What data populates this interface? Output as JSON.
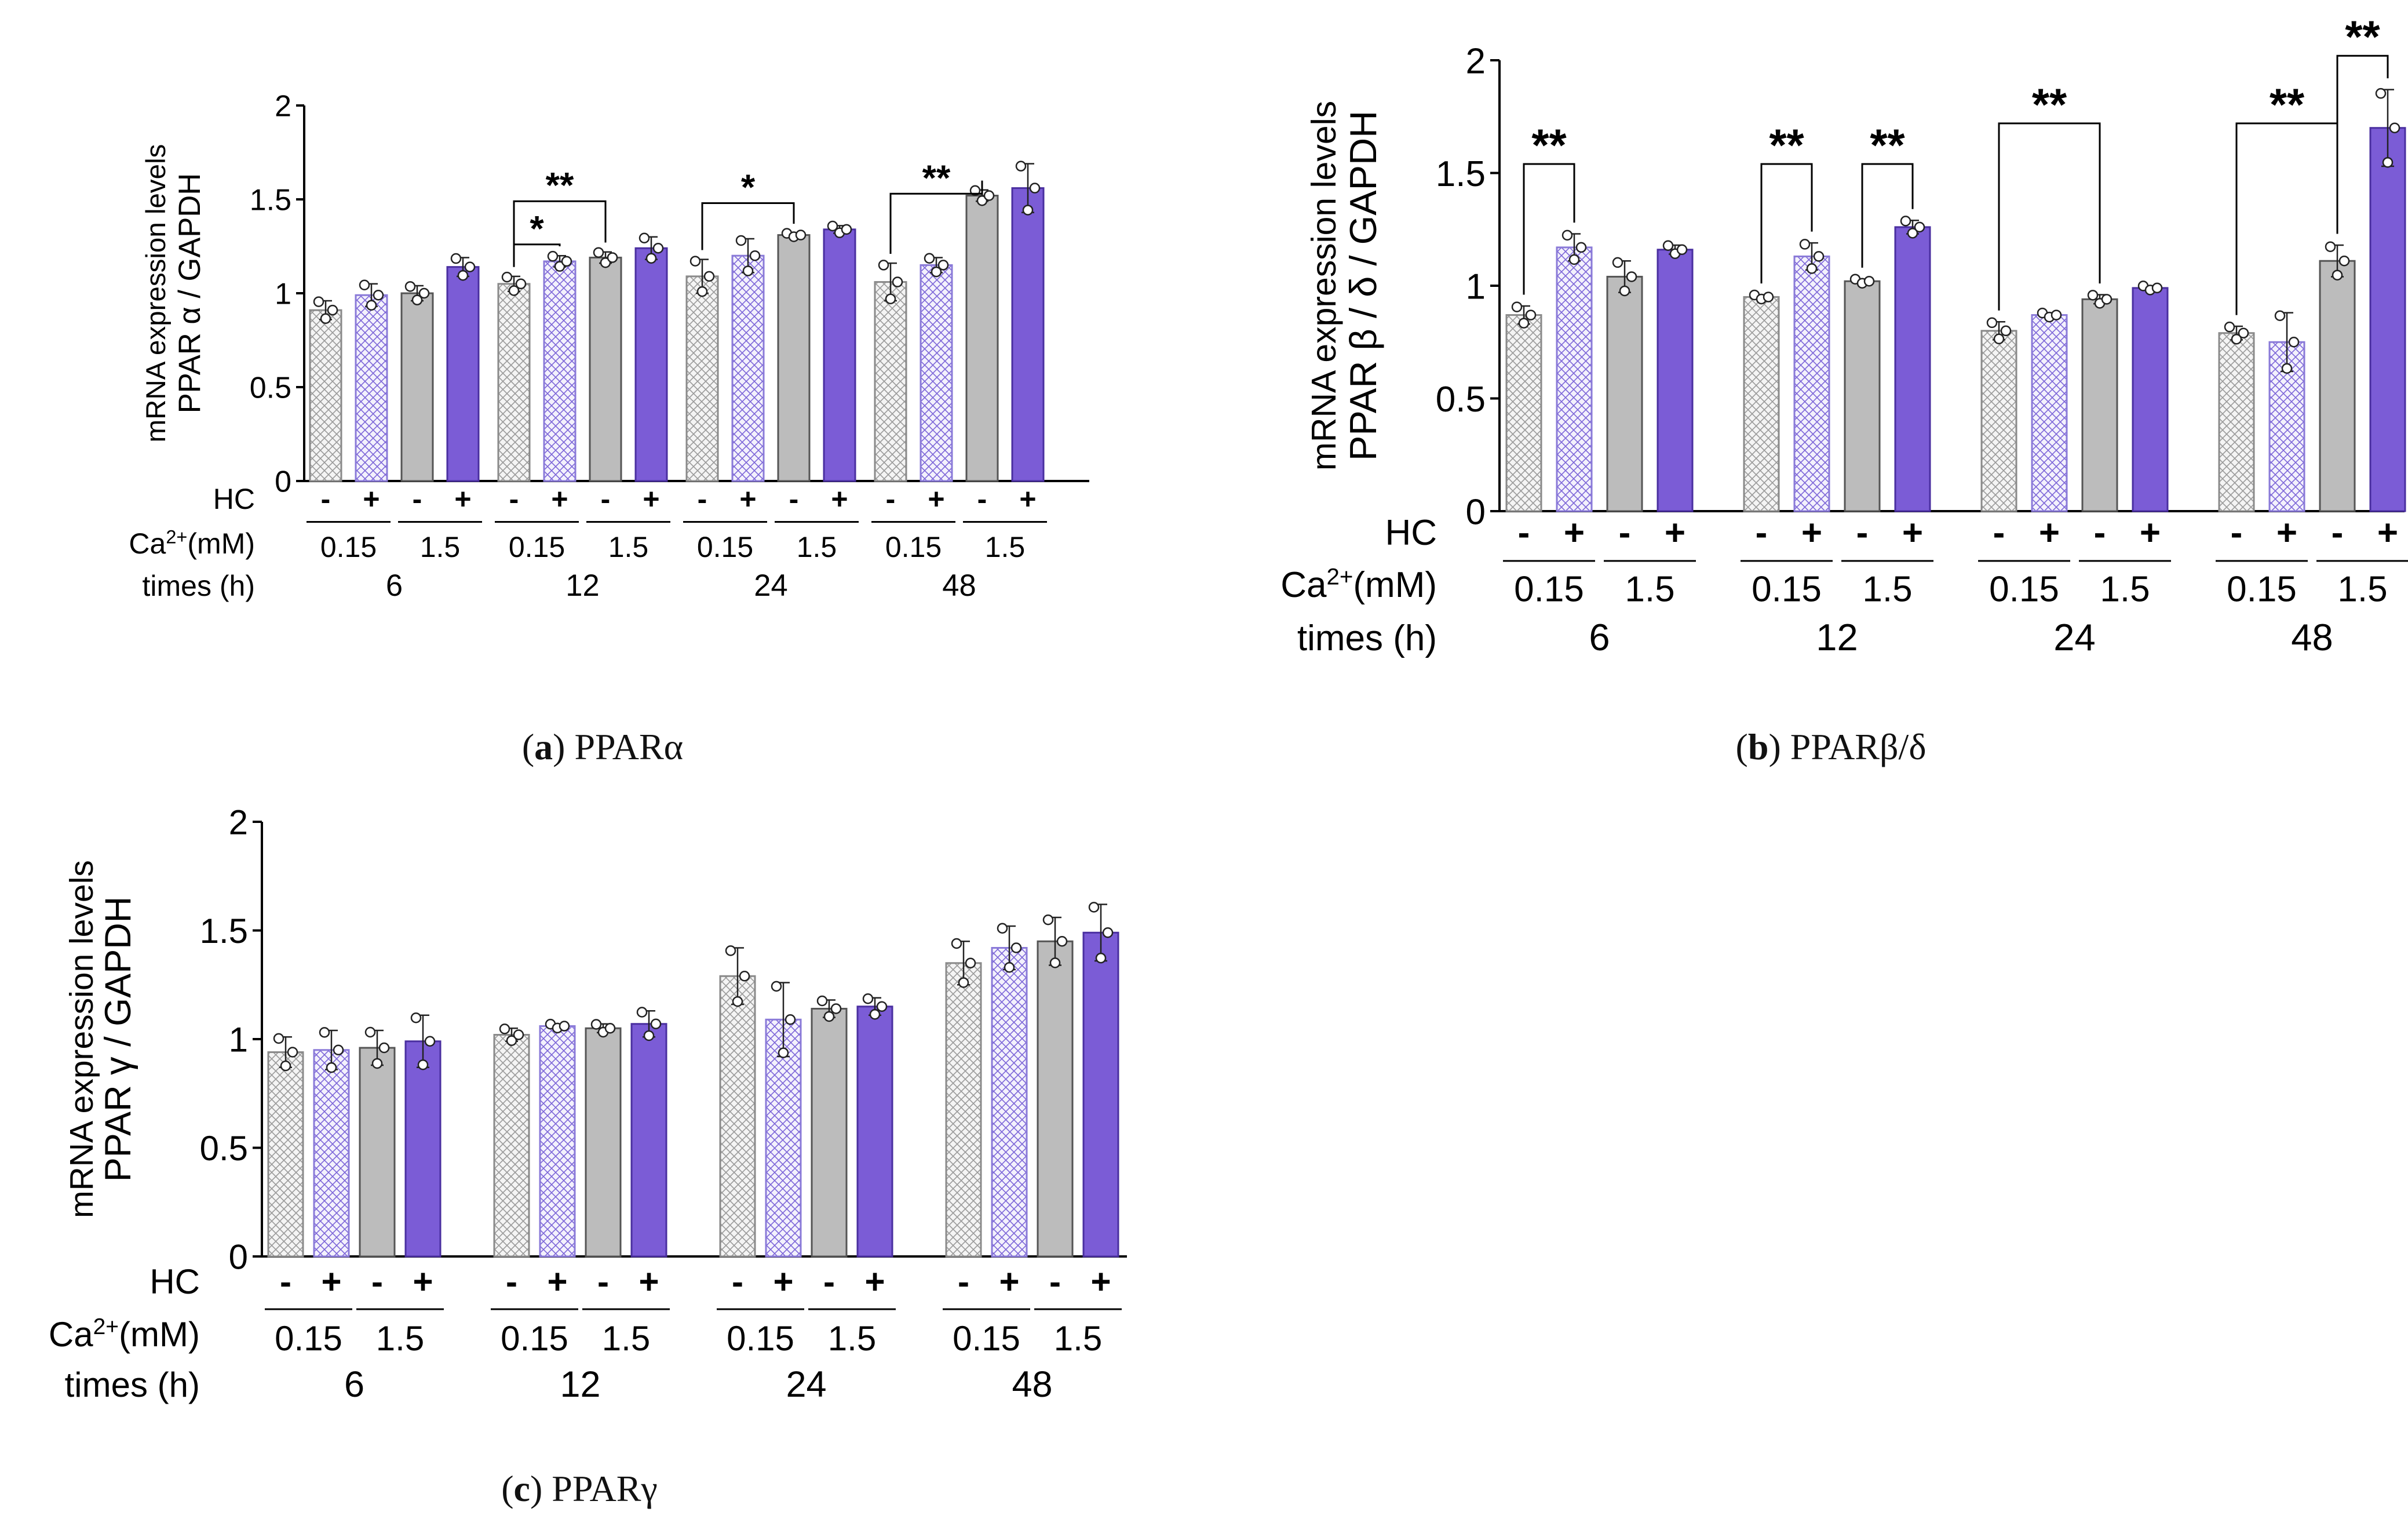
{
  "labels": {
    "hc": "HC",
    "ca_prefix": "Ca",
    "ca_sup": "2+",
    "ca_suffix": "(mM)",
    "times": "times (h)",
    "hc_minus": "-",
    "hc_plus": "+",
    "ca_low": "0.15",
    "ca_high": "1.5"
  },
  "colors": {
    "low_minus": "#f2f2f2",
    "low_plus": "#f0eefb",
    "high_minus": "#bcbcbc",
    "high_plus": "#7b5cd6",
    "outline": "#444444"
  },
  "chart_data": [
    {
      "id": "a",
      "type": "bar",
      "caption_letter": "a",
      "caption_text": "PPARα",
      "ylabel_line1": "mRNA expression levels",
      "ylabel_line2": "PPAR α / GAPDH",
      "ylim": [
        0,
        2
      ],
      "yticks": [
        "0",
        "0.5",
        "1",
        "1.5",
        "2"
      ],
      "categories": [
        "6",
        "12",
        "24",
        "48"
      ],
      "series": [
        {
          "name": "0.15 mM, HC -",
          "values": [
            0.91,
            1.05,
            1.09,
            1.06
          ],
          "errors": [
            0.05,
            0.04,
            0.09,
            0.1
          ]
        },
        {
          "name": "0.15 mM, HC +",
          "values": [
            0.99,
            1.17,
            1.2,
            1.15
          ],
          "errors": [
            0.06,
            0.03,
            0.09,
            0.04
          ]
        },
        {
          "name": "1.5 mM, HC -",
          "values": [
            1.0,
            1.19,
            1.31,
            1.52
          ],
          "errors": [
            0.04,
            0.03,
            0.01,
            0.03
          ]
        },
        {
          "name": "1.5 mM, HC +",
          "values": [
            1.14,
            1.24,
            1.34,
            1.56
          ],
          "errors": [
            0.05,
            0.06,
            0.02,
            0.13
          ]
        }
      ],
      "significance": [
        {
          "group": 1,
          "from": 0,
          "to": 1,
          "label": "*",
          "level": 1.26
        },
        {
          "group": 1,
          "from": 0,
          "to": 2,
          "label": "**",
          "level": 1.49
        },
        {
          "group": 2,
          "from": 0,
          "to": 2,
          "label": "*",
          "level": 1.48
        },
        {
          "group": 3,
          "from": 0,
          "to": 2,
          "label": "**",
          "level": 1.53
        }
      ]
    },
    {
      "id": "b",
      "type": "bar",
      "caption_letter": "b",
      "caption_text": "PPARβ/δ",
      "ylabel_line1": "mRNA expression levels",
      "ylabel_line2": "PPAR β / δ  / GAPDH",
      "ylim": [
        0,
        2
      ],
      "yticks": [
        "0",
        "0.5",
        "1",
        "1.5",
        "2"
      ],
      "categories": [
        "6",
        "12",
        "24",
        "48"
      ],
      "series": [
        {
          "name": "0.15 mM, HC -",
          "values": [
            0.87,
            0.95,
            0.8,
            0.79
          ],
          "errors": [
            0.04,
            0.01,
            0.04,
            0.03
          ]
        },
        {
          "name": "0.15 mM, HC +",
          "values": [
            1.17,
            1.13,
            0.87,
            0.75
          ],
          "errors": [
            0.06,
            0.06,
            0.01,
            0.13
          ]
        },
        {
          "name": "1.5 mM, HC -",
          "values": [
            1.04,
            1.02,
            0.94,
            1.11
          ],
          "errors": [
            0.07,
            0.01,
            0.02,
            0.07
          ]
        },
        {
          "name": "1.5 mM, HC +",
          "values": [
            1.16,
            1.26,
            0.99,
            1.7
          ],
          "errors": [
            0.02,
            0.03,
            0.01,
            0.17
          ]
        }
      ],
      "significance": [
        {
          "group": 0,
          "from": 0,
          "to": 1,
          "label": "**",
          "level": 1.54
        },
        {
          "group": 1,
          "from": 0,
          "to": 1,
          "label": "**",
          "level": 1.54
        },
        {
          "group": 1,
          "from": 2,
          "to": 3,
          "label": "**",
          "level": 1.54
        },
        {
          "group": 2,
          "from": 0,
          "to": 2,
          "label": "**",
          "level": 1.72
        },
        {
          "group": 3,
          "from": 0,
          "to": 2,
          "label": "**",
          "level": 1.72
        },
        {
          "group": 3,
          "from": 2,
          "to": 3,
          "label": "**",
          "level": 2.02
        }
      ]
    },
    {
      "id": "c",
      "type": "bar",
      "caption_letter": "c",
      "caption_text": "PPARγ",
      "ylabel_line1": "mRNA expression levels",
      "ylabel_line2": "PPAR γ  / GAPDH",
      "ylim": [
        0,
        2
      ],
      "yticks": [
        "0",
        "0.5",
        "1",
        "1.5",
        "2"
      ],
      "categories": [
        "6",
        "12",
        "24",
        "48"
      ],
      "series": [
        {
          "name": "0.15 mM, HC -",
          "values": [
            0.94,
            1.02,
            1.29,
            1.35
          ],
          "errors": [
            0.07,
            0.03,
            0.13,
            0.1
          ]
        },
        {
          "name": "0.15 mM, HC +",
          "values": [
            0.95,
            1.06,
            1.09,
            1.42
          ],
          "errors": [
            0.09,
            0.01,
            0.17,
            0.1
          ]
        },
        {
          "name": "1.5 mM, HC -",
          "values": [
            0.96,
            1.05,
            1.14,
            1.45
          ],
          "errors": [
            0.08,
            0.02,
            0.04,
            0.11
          ]
        },
        {
          "name": "1.5 mM, HC +",
          "values": [
            0.99,
            1.07,
            1.15,
            1.49
          ],
          "errors": [
            0.12,
            0.06,
            0.04,
            0.13
          ]
        }
      ],
      "significance": []
    }
  ]
}
